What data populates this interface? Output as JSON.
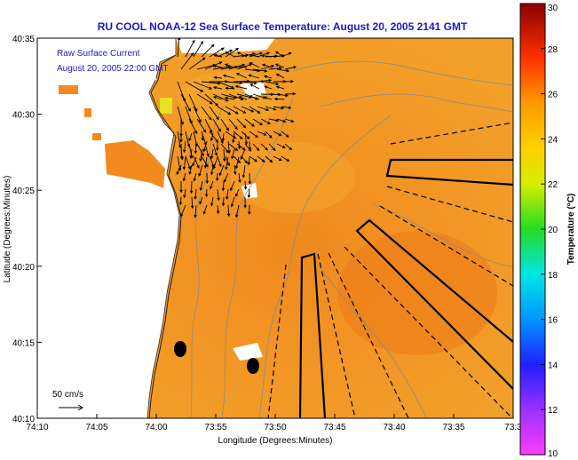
{
  "title": "RU COOL  NOAA-12  Sea Surface Temperature:  August 20, 2005 2141 GMT",
  "annotation": {
    "current_label": "Raw Surface Current",
    "current_time": "August 20, 2005 22:00 GMT",
    "scale_label": "50 cm/s"
  },
  "chart_data": {
    "type": "heatmap",
    "xlabel": "Longitude (Degrees:Minutes)",
    "ylabel": "Latitude (Degrees:Minutes)",
    "x_ticks": [
      "74:10",
      "74:05",
      "74:00",
      "73:55",
      "73:50",
      "73:45",
      "73:40",
      "73:35",
      "73:3"
    ],
    "y_ticks": [
      "40:10",
      "40:15",
      "40:20",
      "40:25",
      "40:30",
      "40:35"
    ],
    "colorbar": {
      "label": "Temperature (°C)",
      "min": 10,
      "max": 30,
      "ticks": [
        "10",
        "12",
        "14",
        "16",
        "18",
        "20",
        "22",
        "24",
        "26",
        "28",
        "30"
      ]
    },
    "dominant_value_range_c": [
      24,
      26
    ]
  },
  "colors": {
    "ocean": "#f08c1e",
    "ocean_warm": "#e86f14",
    "land": "#ffffff",
    "title": "#1a1ac8"
  }
}
